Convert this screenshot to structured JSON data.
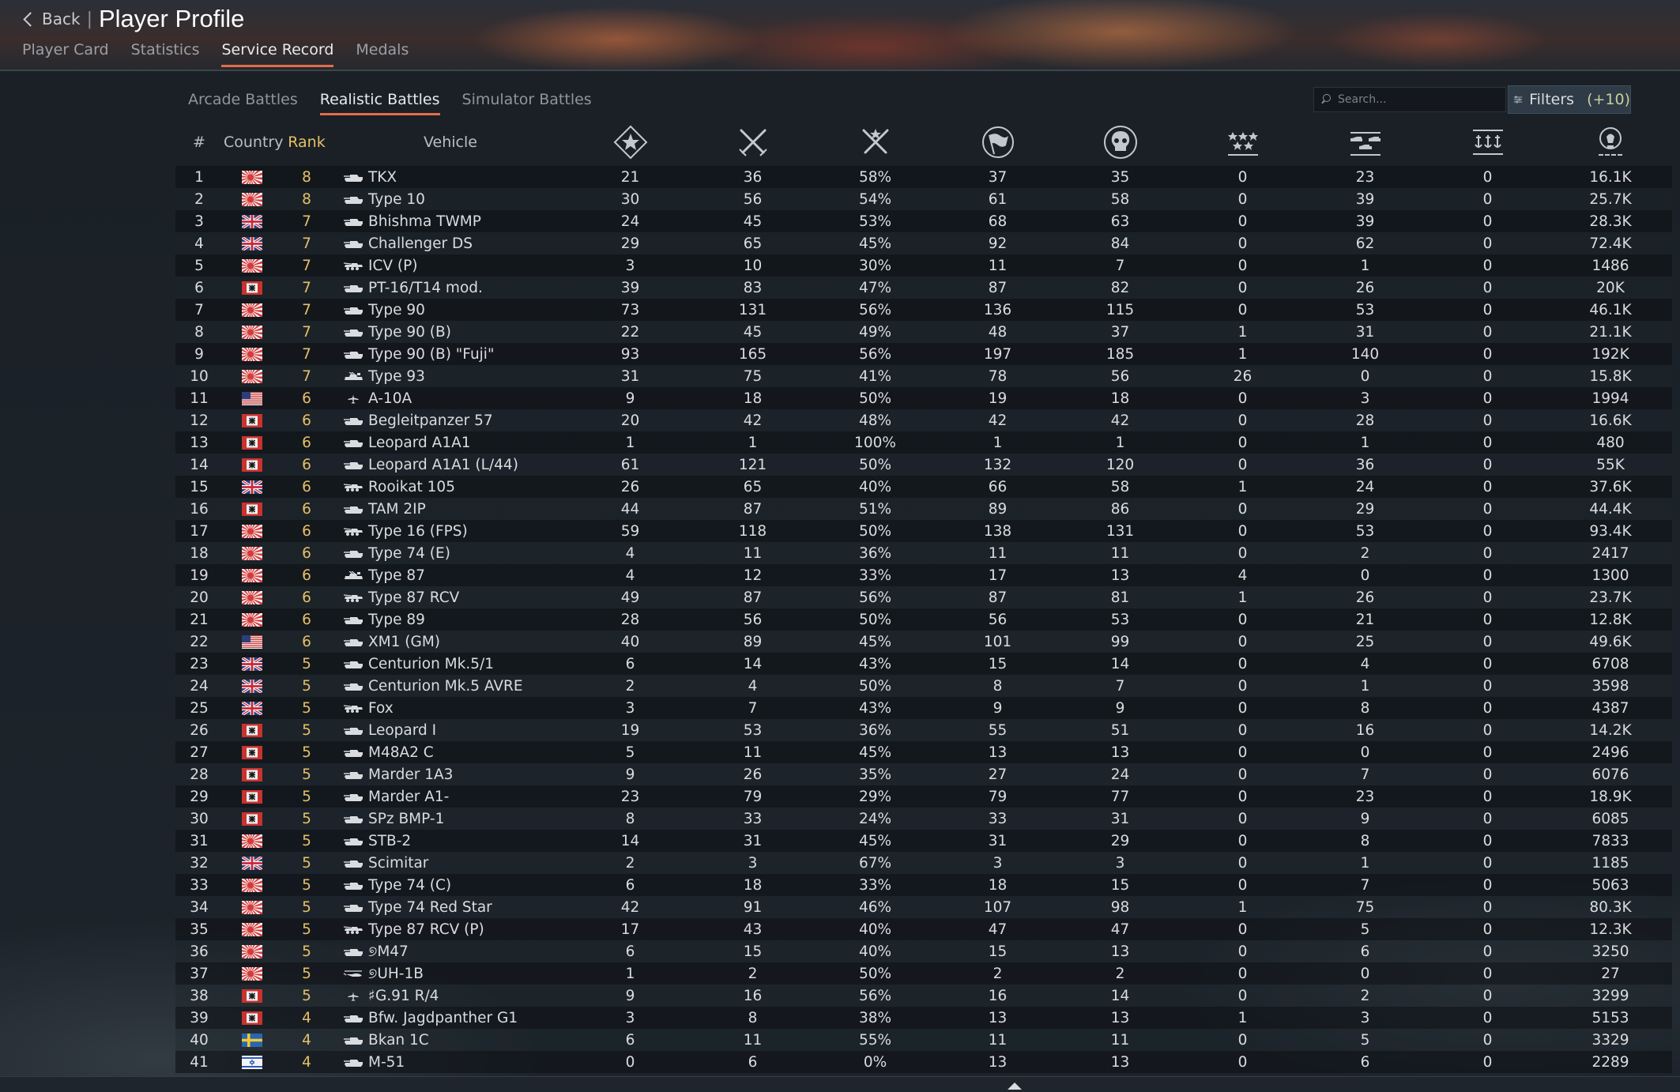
{
  "header": {
    "back_label": "Back",
    "title": "Player Profile"
  },
  "profile_tabs": [
    {
      "label": "Player Card",
      "active": false
    },
    {
      "label": "Statistics",
      "active": false
    },
    {
      "label": "Service Record",
      "active": true
    },
    {
      "label": "Medals",
      "active": false
    }
  ],
  "battle_tabs": [
    {
      "label": "Arcade Battles",
      "active": false
    },
    {
      "label": "Realistic Battles",
      "active": true
    },
    {
      "label": "Simulator Battles",
      "active": false
    }
  ],
  "search": {
    "placeholder": "Search..."
  },
  "filters": {
    "label": "Filters",
    "count": "(+10)"
  },
  "columns": {
    "num": "#",
    "country": "Country",
    "rank": "Rank",
    "vehicle": "Vehicle",
    "icons": [
      "victories-icon",
      "battles-icon",
      "win-rate-icon",
      "respawns-icon",
      "deaths-icon",
      "air-targets-destroyed-icon",
      "ground-targets-destroyed-icon",
      "naval-targets-destroyed-icon",
      "research-points-icon"
    ]
  },
  "colors": {
    "accent": "#e06e4a",
    "rank": "#e6c066"
  },
  "rows": [
    {
      "n": "1",
      "c": "jp",
      "r": "8",
      "t": "tank",
      "v": "TKX",
      "s": [
        "21",
        "36",
        "58%",
        "37",
        "35",
        "0",
        "23",
        "0",
        "16.1K"
      ]
    },
    {
      "n": "2",
      "c": "jp",
      "r": "8",
      "t": "tank",
      "v": "Type 10",
      "s": [
        "30",
        "56",
        "54%",
        "61",
        "58",
        "0",
        "39",
        "0",
        "25.7K"
      ]
    },
    {
      "n": "3",
      "c": "uk",
      "r": "7",
      "t": "tank",
      "v": "Bhishma TWMP",
      "s": [
        "24",
        "45",
        "53%",
        "68",
        "63",
        "0",
        "39",
        "0",
        "28.3K"
      ]
    },
    {
      "n": "4",
      "c": "uk",
      "r": "7",
      "t": "tank",
      "v": "Challenger DS",
      "s": [
        "29",
        "65",
        "45%",
        "92",
        "84",
        "0",
        "62",
        "0",
        "72.4K"
      ]
    },
    {
      "n": "5",
      "c": "jp",
      "r": "7",
      "t": "wheeled",
      "v": "ICV (P)",
      "s": [
        "3",
        "10",
        "30%",
        "11",
        "7",
        "0",
        "1",
        "0",
        "1486"
      ]
    },
    {
      "n": "6",
      "c": "de",
      "r": "7",
      "t": "tank",
      "v": "PT-16/T14 mod.",
      "s": [
        "39",
        "83",
        "47%",
        "87",
        "82",
        "0",
        "26",
        "0",
        "20K"
      ]
    },
    {
      "n": "7",
      "c": "jp",
      "r": "7",
      "t": "tank",
      "v": "Type 90",
      "s": [
        "73",
        "131",
        "56%",
        "136",
        "115",
        "0",
        "53",
        "0",
        "46.1K"
      ]
    },
    {
      "n": "8",
      "c": "jp",
      "r": "7",
      "t": "tank",
      "v": "Type 90 (B)",
      "s": [
        "22",
        "45",
        "49%",
        "48",
        "37",
        "1",
        "31",
        "0",
        "21.1K"
      ]
    },
    {
      "n": "9",
      "c": "jp",
      "r": "7",
      "t": "tank",
      "v": "Type 90 (B) \"Fuji\"",
      "s": [
        "93",
        "165",
        "56%",
        "197",
        "185",
        "1",
        "140",
        "0",
        "192K"
      ]
    },
    {
      "n": "10",
      "c": "jp",
      "r": "7",
      "t": "spaa",
      "v": "Type 93",
      "s": [
        "31",
        "75",
        "41%",
        "78",
        "56",
        "26",
        "0",
        "0",
        "15.8K"
      ]
    },
    {
      "n": "11",
      "c": "us",
      "r": "6",
      "t": "plane",
      "v": "A-10A",
      "s": [
        "9",
        "18",
        "50%",
        "19",
        "18",
        "0",
        "3",
        "0",
        "1994"
      ]
    },
    {
      "n": "12",
      "c": "de",
      "r": "6",
      "t": "tank",
      "v": "Begleitpanzer 57",
      "s": [
        "20",
        "42",
        "48%",
        "42",
        "42",
        "0",
        "28",
        "0",
        "16.6K"
      ]
    },
    {
      "n": "13",
      "c": "de",
      "r": "6",
      "t": "tank",
      "v": "Leopard A1A1",
      "s": [
        "1",
        "1",
        "100%",
        "1",
        "1",
        "0",
        "1",
        "0",
        "480"
      ]
    },
    {
      "n": "14",
      "c": "de",
      "r": "6",
      "t": "tank",
      "v": "Leopard A1A1 (L/44)",
      "s": [
        "61",
        "121",
        "50%",
        "132",
        "120",
        "0",
        "36",
        "0",
        "55K"
      ]
    },
    {
      "n": "15",
      "c": "uk",
      "r": "6",
      "t": "wheeled",
      "v": "Rooikat 105",
      "s": [
        "26",
        "65",
        "40%",
        "66",
        "58",
        "1",
        "24",
        "0",
        "37.6K"
      ]
    },
    {
      "n": "16",
      "c": "de",
      "r": "6",
      "t": "tank",
      "v": "TAM 2IP",
      "s": [
        "44",
        "87",
        "51%",
        "89",
        "86",
        "0",
        "29",
        "0",
        "44.4K"
      ]
    },
    {
      "n": "17",
      "c": "jp",
      "r": "6",
      "t": "wheeled",
      "v": "Type 16 (FPS)",
      "s": [
        "59",
        "118",
        "50%",
        "138",
        "131",
        "0",
        "53",
        "0",
        "93.4K"
      ]
    },
    {
      "n": "18",
      "c": "jp",
      "r": "6",
      "t": "tank",
      "v": "Type 74 (E)",
      "s": [
        "4",
        "11",
        "36%",
        "11",
        "11",
        "0",
        "2",
        "0",
        "2417"
      ]
    },
    {
      "n": "19",
      "c": "jp",
      "r": "6",
      "t": "spaa",
      "v": "Type 87",
      "s": [
        "4",
        "12",
        "33%",
        "17",
        "13",
        "4",
        "0",
        "0",
        "1300"
      ]
    },
    {
      "n": "20",
      "c": "jp",
      "r": "6",
      "t": "wheeled",
      "v": "Type 87 RCV",
      "s": [
        "49",
        "87",
        "56%",
        "87",
        "81",
        "1",
        "26",
        "0",
        "23.7K"
      ]
    },
    {
      "n": "21",
      "c": "jp",
      "r": "6",
      "t": "tank",
      "v": "Type 89",
      "s": [
        "28",
        "56",
        "50%",
        "56",
        "53",
        "0",
        "21",
        "0",
        "12.8K"
      ]
    },
    {
      "n": "22",
      "c": "us",
      "r": "6",
      "t": "tank",
      "v": "XM1 (GM)",
      "s": [
        "40",
        "89",
        "45%",
        "101",
        "99",
        "0",
        "25",
        "0",
        "49.6K"
      ]
    },
    {
      "n": "23",
      "c": "uk",
      "r": "5",
      "t": "tank",
      "v": "Centurion Mk.5/1",
      "s": [
        "6",
        "14",
        "43%",
        "15",
        "14",
        "0",
        "4",
        "0",
        "6708"
      ]
    },
    {
      "n": "24",
      "c": "uk",
      "r": "5",
      "t": "tank",
      "v": "Centurion Mk.5 AVRE",
      "s": [
        "2",
        "4",
        "50%",
        "8",
        "7",
        "0",
        "1",
        "0",
        "3598"
      ]
    },
    {
      "n": "25",
      "c": "uk",
      "r": "5",
      "t": "wheeled",
      "v": "Fox",
      "s": [
        "3",
        "7",
        "43%",
        "9",
        "9",
        "0",
        "8",
        "0",
        "4387"
      ]
    },
    {
      "n": "26",
      "c": "de",
      "r": "5",
      "t": "tank",
      "v": "Leopard I",
      "s": [
        "19",
        "53",
        "36%",
        "55",
        "51",
        "0",
        "16",
        "0",
        "14.2K"
      ]
    },
    {
      "n": "27",
      "c": "de",
      "r": "5",
      "t": "tank",
      "v": "M48A2 C",
      "s": [
        "5",
        "11",
        "45%",
        "13",
        "13",
        "0",
        "0",
        "0",
        "2496"
      ]
    },
    {
      "n": "28",
      "c": "de",
      "r": "5",
      "t": "tank",
      "v": "Marder 1A3",
      "s": [
        "9",
        "26",
        "35%",
        "27",
        "24",
        "0",
        "7",
        "0",
        "6076"
      ]
    },
    {
      "n": "29",
      "c": "de",
      "r": "5",
      "t": "tank",
      "v": "Marder A1-",
      "s": [
        "23",
        "79",
        "29%",
        "79",
        "77",
        "0",
        "23",
        "0",
        "18.9K"
      ]
    },
    {
      "n": "30",
      "c": "de",
      "r": "5",
      "t": "tank",
      "v": "SPz BMP-1",
      "s": [
        "8",
        "33",
        "24%",
        "33",
        "31",
        "0",
        "9",
        "0",
        "6085"
      ]
    },
    {
      "n": "31",
      "c": "jp",
      "r": "5",
      "t": "tank",
      "v": "STB-2",
      "s": [
        "14",
        "31",
        "45%",
        "31",
        "29",
        "0",
        "8",
        "0",
        "7833"
      ]
    },
    {
      "n": "32",
      "c": "uk",
      "r": "5",
      "t": "tank",
      "v": "Scimitar",
      "s": [
        "2",
        "3",
        "67%",
        "3",
        "3",
        "0",
        "1",
        "0",
        "1185"
      ]
    },
    {
      "n": "33",
      "c": "jp",
      "r": "5",
      "t": "tank",
      "v": "Type 74 (C)",
      "s": [
        "6",
        "18",
        "33%",
        "18",
        "15",
        "0",
        "7",
        "0",
        "5063"
      ]
    },
    {
      "n": "34",
      "c": "jp",
      "r": "5",
      "t": "tank",
      "v": "Type 74 Red Star",
      "s": [
        "42",
        "91",
        "46%",
        "107",
        "98",
        "1",
        "75",
        "0",
        "80.3K"
      ]
    },
    {
      "n": "35",
      "c": "jp",
      "r": "5",
      "t": "wheeled",
      "v": "Type 87 RCV (P)",
      "s": [
        "17",
        "43",
        "40%",
        "47",
        "47",
        "0",
        "5",
        "0",
        "12.3K"
      ]
    },
    {
      "n": "36",
      "c": "jp",
      "r": "5",
      "t": "tank",
      "v": "୭M47",
      "s": [
        "6",
        "15",
        "40%",
        "15",
        "13",
        "0",
        "6",
        "0",
        "3250"
      ]
    },
    {
      "n": "37",
      "c": "jp",
      "r": "5",
      "t": "heli",
      "v": "୭UH-1B",
      "s": [
        "1",
        "2",
        "50%",
        "2",
        "2",
        "0",
        "0",
        "0",
        "27"
      ]
    },
    {
      "n": "38",
      "c": "de",
      "r": "5",
      "t": "plane",
      "v": "♯G.91 R/4",
      "s": [
        "9",
        "16",
        "56%",
        "16",
        "14",
        "0",
        "2",
        "0",
        "3299"
      ]
    },
    {
      "n": "39",
      "c": "de",
      "r": "4",
      "t": "tank",
      "v": "Bfw. Jagdpanther G1",
      "s": [
        "3",
        "8",
        "38%",
        "13",
        "13",
        "1",
        "3",
        "0",
        "5153"
      ]
    },
    {
      "n": "40",
      "c": "se",
      "r": "4",
      "t": "tank",
      "v": "Bkan 1C",
      "s": [
        "6",
        "11",
        "55%",
        "11",
        "11",
        "0",
        "5",
        "0",
        "3329"
      ]
    },
    {
      "n": "41",
      "c": "il",
      "r": "4",
      "t": "tank",
      "v": "M-51",
      "s": [
        "0",
        "6",
        "0%",
        "13",
        "13",
        "0",
        "6",
        "0",
        "2289"
      ]
    }
  ]
}
